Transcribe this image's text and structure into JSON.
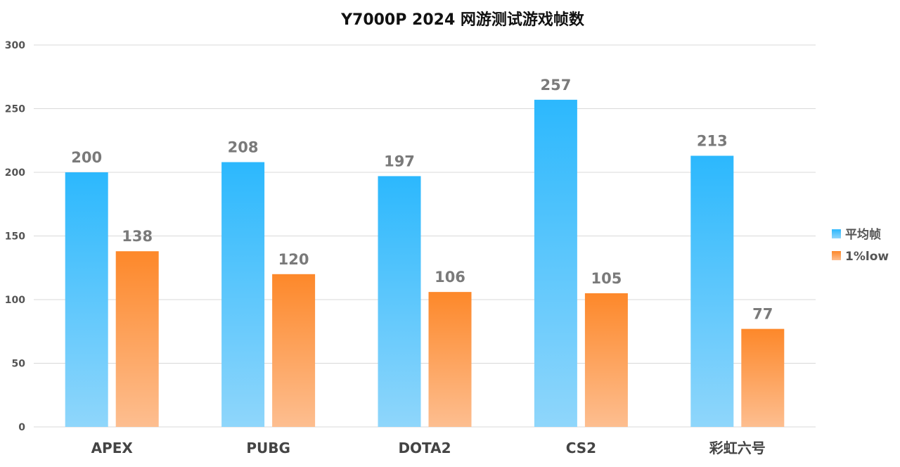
{
  "chart_data": {
    "type": "bar",
    "title": "Y7000P 2024 网游测试游戏帧数",
    "categories": [
      "APEX",
      "PUBG",
      "DOTA2",
      "CS2",
      "彩虹六号"
    ],
    "series": [
      {
        "name": "平均帧",
        "values": [
          200,
          208,
          197,
          257,
          213
        ],
        "color_top": "#2cb8fd",
        "color_bottom": "#8fd6fb"
      },
      {
        "name": "1%low",
        "values": [
          138,
          120,
          106,
          105,
          77
        ],
        "color_top": "#fd882a",
        "color_bottom": "#fdbe90"
      }
    ],
    "ylim": [
      0,
      300
    ],
    "yticks": [
      0,
      50,
      100,
      150,
      200,
      250,
      300
    ],
    "grid": true,
    "legend": "right",
    "xlabel": "",
    "ylabel": ""
  }
}
